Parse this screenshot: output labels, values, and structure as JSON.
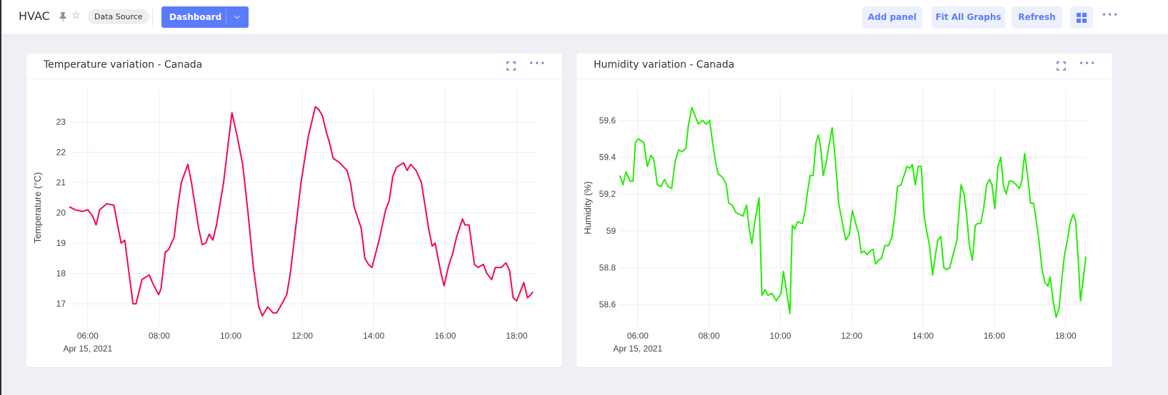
{
  "header": {
    "title": "HVAC",
    "pin_icon": "pin-icon",
    "star_icon": "star-icon",
    "chip": "Data Source",
    "dashboard": "Dashboard",
    "add_panel": "Add panel",
    "fit_all": "Fit All Graphs",
    "refresh": "Refresh",
    "more": "•••"
  },
  "panels": [
    {
      "title": "Temperature variation - Canada",
      "more": "•••"
    },
    {
      "title": "Humidity variation - Canada",
      "more": "•••"
    }
  ],
  "chart_data": [
    {
      "type": "line",
      "title": "",
      "ylabel": "Temperature (°C)",
      "xlabel": "",
      "color": "#f5084a",
      "date_label": "Apr 15, 2021",
      "xlim": [
        "05:29",
        "18:32"
      ],
      "ylim": [
        16.25,
        24.08
      ],
      "xticks": [
        "06:00",
        "08:00",
        "10:00",
        "12:00",
        "14:00",
        "16:00",
        "18:00"
      ],
      "yticks": [
        17,
        18,
        19,
        20,
        21,
        22,
        23
      ],
      "grid": true,
      "points": [
        [
          "05:29",
          20.2
        ],
        [
          "05:39",
          20.1
        ],
        [
          "05:51",
          20.05
        ],
        [
          "06:00",
          20.1
        ],
        [
          "06:08",
          19.9
        ],
        [
          "06:14",
          19.6
        ],
        [
          "06:20",
          20.1
        ],
        [
          "06:32",
          20.3
        ],
        [
          "06:44",
          20.25
        ],
        [
          "06:50",
          19.6
        ],
        [
          "06:56",
          19.0
        ],
        [
          "07:02",
          19.1
        ],
        [
          "07:08",
          18.2
        ],
        [
          "07:16",
          17.0
        ],
        [
          "07:21",
          17.0
        ],
        [
          "07:31",
          17.8
        ],
        [
          "07:43",
          17.95
        ],
        [
          "07:51",
          17.6
        ],
        [
          "07:59",
          17.3
        ],
        [
          "08:03",
          17.5
        ],
        [
          "08:10",
          18.7
        ],
        [
          "08:16",
          18.8
        ],
        [
          "08:25",
          19.2
        ],
        [
          "08:31",
          20.2
        ],
        [
          "08:37",
          21.0
        ],
        [
          "08:48",
          21.6
        ],
        [
          "08:54",
          21.0
        ],
        [
          "09:06",
          19.5
        ],
        [
          "09:12",
          18.95
        ],
        [
          "09:18",
          19.0
        ],
        [
          "09:24",
          19.3
        ],
        [
          "09:30",
          19.1
        ],
        [
          "09:36",
          19.6
        ],
        [
          "09:48",
          21.0
        ],
        [
          "09:57",
          22.5
        ],
        [
          "10:02",
          23.3
        ],
        [
          "10:11",
          22.5
        ],
        [
          "10:20",
          21.6
        ],
        [
          "10:29",
          20.0
        ],
        [
          "10:38",
          18.2
        ],
        [
          "10:47",
          16.9
        ],
        [
          "10:53",
          16.6
        ],
        [
          "11:02",
          16.9
        ],
        [
          "11:11",
          16.7
        ],
        [
          "11:17",
          16.7
        ],
        [
          "11:23",
          16.9
        ],
        [
          "11:34",
          17.3
        ],
        [
          "11:40",
          18.0
        ],
        [
          "11:46",
          19.0
        ],
        [
          "11:58",
          21.0
        ],
        [
          "12:10",
          22.5
        ],
        [
          "12:22",
          23.5
        ],
        [
          "12:28",
          23.4
        ],
        [
          "12:34",
          23.2
        ],
        [
          "12:40",
          22.7
        ],
        [
          "12:46",
          22.3
        ],
        [
          "12:52",
          21.8
        ],
        [
          "13:03",
          21.65
        ],
        [
          "13:15",
          21.4
        ],
        [
          "13:21",
          21.0
        ],
        [
          "13:27",
          20.2
        ],
        [
          "13:39",
          19.5
        ],
        [
          "13:45",
          18.5
        ],
        [
          "13:51",
          18.3
        ],
        [
          "13:57",
          18.2
        ],
        [
          "14:09",
          19.1
        ],
        [
          "14:20",
          20.1
        ],
        [
          "14:26",
          20.4
        ],
        [
          "14:32",
          21.2
        ],
        [
          "14:38",
          21.5
        ],
        [
          "14:50",
          21.65
        ],
        [
          "14:56",
          21.4
        ],
        [
          "15:02",
          21.6
        ],
        [
          "15:11",
          21.4
        ],
        [
          "15:20",
          21.0
        ],
        [
          "15:32",
          19.5
        ],
        [
          "15:38",
          18.9
        ],
        [
          "15:43",
          19.0
        ],
        [
          "15:53",
          18.0
        ],
        [
          "15:58",
          17.6
        ],
        [
          "16:05",
          18.2
        ],
        [
          "16:13",
          18.7
        ],
        [
          "16:19",
          19.2
        ],
        [
          "16:29",
          19.8
        ],
        [
          "16:33",
          19.6
        ],
        [
          "16:40",
          19.6
        ],
        [
          "16:49",
          18.3
        ],
        [
          "16:55",
          18.2
        ],
        [
          "17:04",
          18.3
        ],
        [
          "17:10",
          18.0
        ],
        [
          "17:18",
          17.8
        ],
        [
          "17:24",
          18.2
        ],
        [
          "17:34",
          18.2
        ],
        [
          "17:42",
          18.35
        ],
        [
          "17:48",
          18.1
        ],
        [
          "17:54",
          17.2
        ],
        [
          "18:00",
          17.1
        ],
        [
          "18:12",
          17.7
        ],
        [
          "18:18",
          17.2
        ],
        [
          "18:24",
          17.3
        ],
        [
          "18:27",
          17.4
        ]
      ]
    },
    {
      "type": "line",
      "title": "",
      "ylabel": "Humidity (%)",
      "xlabel": "",
      "color": "#22ee00",
      "date_label": "Apr 15, 2021",
      "xlim": [
        "05:29",
        "18:34"
      ],
      "ylim": [
        58.48,
        59.77
      ],
      "xticks": [
        "06:00",
        "08:00",
        "10:00",
        "12:00",
        "14:00",
        "16:00",
        "18:00"
      ],
      "yticks": [
        "58.6",
        "58.8",
        "59",
        "59.2",
        "59.4",
        "59.6"
      ],
      "grid": true,
      "points": [
        [
          "05:30",
          59.3
        ],
        [
          "05:35",
          59.25
        ],
        [
          "05:40",
          59.32
        ],
        [
          "05:47",
          59.27
        ],
        [
          "05:52",
          59.27
        ],
        [
          "05:56",
          59.48
        ],
        [
          "06:01",
          59.5
        ],
        [
          "06:10",
          59.48
        ],
        [
          "06:16",
          59.35
        ],
        [
          "06:22",
          59.41
        ],
        [
          "06:27",
          59.39
        ],
        [
          "06:33",
          59.25
        ],
        [
          "06:39",
          59.24
        ],
        [
          "06:45",
          59.28
        ],
        [
          "06:51",
          59.24
        ],
        [
          "06:57",
          59.23
        ],
        [
          "07:03",
          59.38
        ],
        [
          "07:09",
          59.44
        ],
        [
          "07:15",
          59.43
        ],
        [
          "07:21",
          59.45
        ],
        [
          "07:25",
          59.57
        ],
        [
          "07:31",
          59.67
        ],
        [
          "07:37",
          59.62
        ],
        [
          "07:42",
          59.58
        ],
        [
          "07:49",
          59.6
        ],
        [
          "07:55",
          59.58
        ],
        [
          "08:01",
          59.6
        ],
        [
          "08:05",
          59.5
        ],
        [
          "08:10",
          59.39
        ],
        [
          "08:15",
          59.31
        ],
        [
          "08:23",
          59.29
        ],
        [
          "08:29",
          59.25
        ],
        [
          "08:33",
          59.15
        ],
        [
          "08:39",
          59.14
        ],
        [
          "08:45",
          59.1
        ],
        [
          "08:51",
          59.09
        ],
        [
          "08:57",
          59.08
        ],
        [
          "09:03",
          59.14
        ],
        [
          "09:08",
          59.0
        ],
        [
          "09:12",
          58.93
        ],
        [
          "09:17",
          59.05
        ],
        [
          "09:24",
          59.18
        ],
        [
          "09:29",
          58.65
        ],
        [
          "09:34",
          58.68
        ],
        [
          "09:39",
          58.65
        ],
        [
          "09:46",
          58.66
        ],
        [
          "09:53",
          58.62
        ],
        [
          "10:01",
          58.66
        ],
        [
          "10:05",
          58.78
        ],
        [
          "10:10",
          58.68
        ],
        [
          "10:16",
          58.55
        ],
        [
          "10:20",
          59.03
        ],
        [
          "10:24",
          59.01
        ],
        [
          "10:29",
          59.05
        ],
        [
          "10:37",
          59.04
        ],
        [
          "10:41",
          59.1
        ],
        [
          "10:46",
          59.22
        ],
        [
          "10:50",
          59.3
        ],
        [
          "10:55",
          59.3
        ],
        [
          "11:00",
          59.48
        ],
        [
          "11:04",
          59.52
        ],
        [
          "11:08",
          59.45
        ],
        [
          "11:12",
          59.3
        ],
        [
          "11:17",
          59.37
        ],
        [
          "11:21",
          59.45
        ],
        [
          "11:27",
          59.56
        ],
        [
          "11:32",
          59.4
        ],
        [
          "11:38",
          59.15
        ],
        [
          "11:44",
          59.05
        ],
        [
          "11:50",
          58.95
        ],
        [
          "11:56",
          58.98
        ],
        [
          "12:01",
          59.11
        ],
        [
          "12:06",
          59.05
        ],
        [
          "12:12",
          58.98
        ],
        [
          "12:16",
          58.88
        ],
        [
          "12:21",
          58.89
        ],
        [
          "12:26",
          58.87
        ],
        [
          "12:31",
          58.89
        ],
        [
          "12:36",
          58.9
        ],
        [
          "12:40",
          58.82
        ],
        [
          "12:45",
          58.84
        ],
        [
          "12:50",
          58.85
        ],
        [
          "12:56",
          58.92
        ],
        [
          "13:02",
          58.92
        ],
        [
          "13:08",
          58.97
        ],
        [
          "13:13",
          59.1
        ],
        [
          "13:17",
          59.24
        ],
        [
          "13:23",
          59.25
        ],
        [
          "13:28",
          59.3
        ],
        [
          "13:33",
          59.35
        ],
        [
          "13:38",
          59.34
        ],
        [
          "13:42",
          59.36
        ],
        [
          "13:47",
          59.25
        ],
        [
          "13:52",
          59.35
        ],
        [
          "13:57",
          59.35
        ],
        [
          "14:02",
          59.08
        ],
        [
          "14:06",
          59.0
        ],
        [
          "14:11",
          58.92
        ],
        [
          "14:16",
          58.76
        ],
        [
          "14:21",
          58.87
        ],
        [
          "14:25",
          58.95
        ],
        [
          "14:30",
          58.97
        ],
        [
          "14:35",
          58.8
        ],
        [
          "14:40",
          58.79
        ],
        [
          "14:45",
          58.8
        ],
        [
          "14:49",
          58.85
        ],
        [
          "14:57",
          58.95
        ],
        [
          "15:04",
          59.25
        ],
        [
          "15:09",
          59.2
        ],
        [
          "15:13",
          59.1
        ],
        [
          "15:18",
          58.92
        ],
        [
          "15:23",
          58.84
        ],
        [
          "15:28",
          59.03
        ],
        [
          "15:32",
          59.04
        ],
        [
          "15:37",
          59.04
        ],
        [
          "15:42",
          59.12
        ],
        [
          "15:47",
          59.25
        ],
        [
          "15:52",
          59.28
        ],
        [
          "15:56",
          59.25
        ],
        [
          "16:01",
          59.12
        ],
        [
          "16:06",
          59.35
        ],
        [
          "16:11",
          59.4
        ],
        [
          "16:15",
          59.25
        ],
        [
          "16:20",
          59.2
        ],
        [
          "16:25",
          59.27
        ],
        [
          "16:30",
          59.27
        ],
        [
          "16:37",
          59.25
        ],
        [
          "16:42",
          59.23
        ],
        [
          "16:46",
          59.27
        ],
        [
          "16:51",
          59.42
        ],
        [
          "16:56",
          59.3
        ],
        [
          "17:01",
          59.15
        ],
        [
          "17:06",
          59.15
        ],
        [
          "17:10",
          59.07
        ],
        [
          "17:15",
          58.95
        ],
        [
          "17:20",
          58.8
        ],
        [
          "17:25",
          58.72
        ],
        [
          "17:30",
          58.7
        ],
        [
          "17:34",
          58.75
        ],
        [
          "17:39",
          58.62
        ],
        [
          "17:44",
          58.53
        ],
        [
          "17:49",
          58.58
        ],
        [
          "17:53",
          58.72
        ],
        [
          "17:58",
          58.87
        ],
        [
          "18:03",
          58.95
        ],
        [
          "18:08",
          59.05
        ],
        [
          "18:13",
          59.09
        ],
        [
          "18:17",
          59.05
        ],
        [
          "18:22",
          58.8
        ],
        [
          "18:25",
          58.62
        ],
        [
          "18:29",
          58.72
        ],
        [
          "18:34",
          58.86
        ]
      ]
    }
  ]
}
